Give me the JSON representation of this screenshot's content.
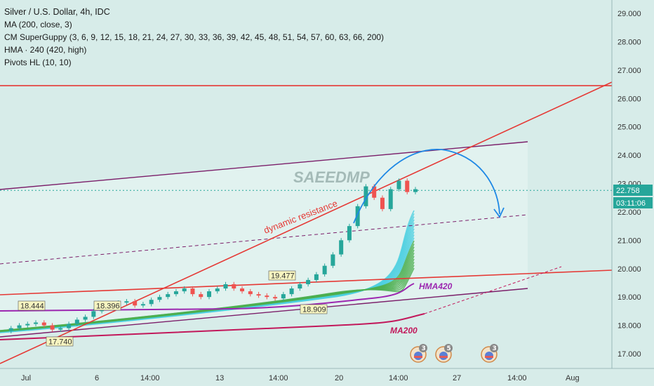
{
  "legend": {
    "title": "Silver / U.S. Dollar, 4h, IDC",
    "lines": [
      "MA (200, close, 3)",
      "CM SuperGuppy (3, 6, 9, 12, 15, 18, 21, 24, 27, 30, 33, 36, 39, 42, 45, 48, 51, 54, 57, 60, 63, 66, 200)",
      "HMA · 240 (420, high)",
      "Pivots HL (10, 10)"
    ]
  },
  "watermark": "SAEEDMP",
  "price_axis": {
    "ticks": [
      "29.000",
      "28.000",
      "27.000",
      "26.000",
      "25.000",
      "24.000",
      "23.000",
      "22.000",
      "21.000",
      "20.000",
      "19.000",
      "18.000",
      "17.000"
    ],
    "current_price": "22.758",
    "countdown": "03:11:06"
  },
  "time_axis": {
    "labels": [
      "Jul",
      "6",
      "14:00",
      "13",
      "14:00",
      "20",
      "14:00",
      "27",
      "14:00",
      "Aug"
    ]
  },
  "annotations": {
    "dynamic_resistance": "dynamic resistance",
    "hma": "HMA420",
    "ma": "MA200"
  },
  "pivots": [
    "18.444",
    "18.396",
    "19.477",
    "17.740",
    "18.909"
  ],
  "event_badges": [
    "3",
    "5",
    "3"
  ],
  "colors": {
    "background": "#d7ece9",
    "resistance_red": "#e53935",
    "channel_purple": "#7b1f6a",
    "hma_purple": "#9c27b0",
    "ma_magenta": "#c2185b",
    "forecast_blue": "#1e88e5",
    "candle_up": "#26a69a",
    "candle_down": "#ef5350",
    "guppy_green": "#4caf50",
    "guppy_cyan": "#4dd0e1"
  },
  "chart_data": {
    "type": "candlestick",
    "symbol": "Silver / U.S. Dollar",
    "timeframe": "4h",
    "y_range": [
      16.6,
      29.3
    ],
    "current_price": 22.758,
    "pivot_labels": [
      {
        "label": "18.444",
        "value": 18.444,
        "kind": "high"
      },
      {
        "label": "18.396",
        "value": 18.396,
        "kind": "high"
      },
      {
        "label": "19.477",
        "value": 19.477,
        "kind": "high"
      },
      {
        "label": "17.740",
        "value": 17.74,
        "kind": "low"
      },
      {
        "label": "18.909",
        "value": 18.909,
        "kind": "low"
      }
    ],
    "horizontal_levels": [
      26.45
    ],
    "price_path": [
      17.8,
      17.9,
      18.0,
      18.05,
      18.1,
      18.0,
      17.85,
      17.9,
      18.05,
      18.2,
      18.3,
      18.5,
      18.6,
      18.7,
      18.8,
      18.85,
      18.7,
      18.75,
      18.9,
      19.0,
      19.1,
      19.2,
      19.3,
      19.1,
      19.0,
      19.2,
      19.3,
      19.45,
      19.3,
      19.2,
      19.1,
      19.05,
      19.0,
      18.95,
      19.1,
      19.3,
      19.45,
      19.6,
      19.8,
      20.1,
      20.5,
      21.0,
      21.5,
      22.2,
      22.9,
      22.5,
      22.1,
      22.8,
      23.1,
      22.7,
      22.8
    ]
  }
}
